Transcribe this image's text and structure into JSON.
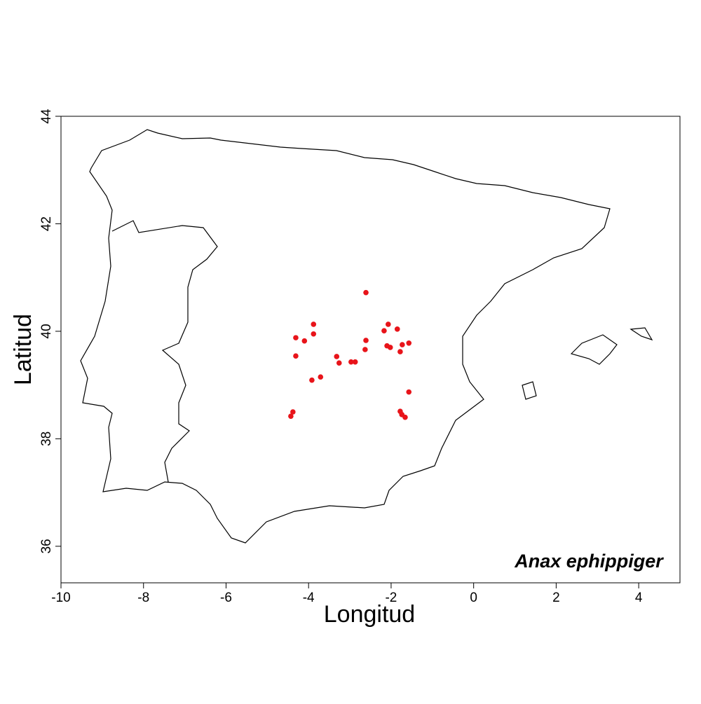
{
  "chart_data": {
    "type": "scatter",
    "title": "Anax ephippiger",
    "x_label": "Longitud",
    "y_label": "Latitud",
    "color": "#e8141a",
    "xlim": [
      -10,
      5
    ],
    "ylim": [
      35.32,
      44
    ],
    "xticks": [
      -10,
      -8,
      -6,
      -4,
      -2,
      0,
      2,
      4
    ],
    "yticks": [
      36,
      38,
      40,
      42,
      44
    ],
    "x": [
      -2.61,
      -3.88,
      -4.31,
      -4.1,
      -3.88,
      -4.31,
      -3.32,
      -3.26,
      -2.97,
      -2.87,
      -2.61,
      -2.63,
      -3.92,
      -3.71,
      -2.17,
      -2.07,
      -2.1,
      -2.02,
      -1.85,
      -1.78,
      -1.73,
      -1.57,
      -1.57,
      -1.78,
      -1.74,
      -1.66,
      -4.38,
      -4.43
    ],
    "y": [
      40.72,
      40.13,
      39.88,
      39.82,
      39.95,
      39.54,
      39.53,
      39.41,
      39.43,
      39.43,
      39.83,
      39.66,
      39.09,
      39.15,
      40.01,
      40.13,
      39.73,
      39.7,
      40.04,
      39.62,
      39.75,
      39.78,
      38.87,
      38.51,
      38.45,
      38.4,
      38.5,
      38.42
    ]
  }
}
